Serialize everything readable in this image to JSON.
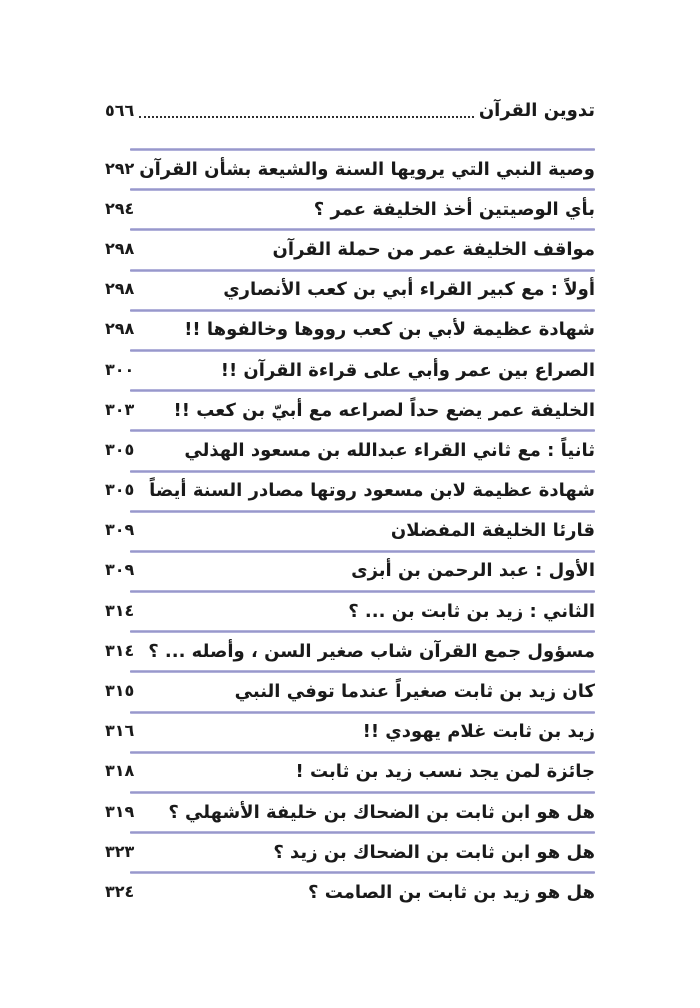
{
  "header": {
    "title": "تدوين القرآن",
    "page_number": "٥٦٦"
  },
  "toc": {
    "entries": [
      {
        "title": "وصية النبي التي يرويها السنة والشيعة بشأن القرآن",
        "page": "٢٩٢"
      },
      {
        "title": "بأي الوصيتين أخذ الخليفة عمر ؟",
        "page": "٢٩٤"
      },
      {
        "title": "مواقف الخليفة عمر من حملة القرآن",
        "page": "٢٩٨"
      },
      {
        "title": "أولاً : مع كبير القراء أبي بن كعب الأنصاري",
        "page": "٢٩٨"
      },
      {
        "title": "شهادة عظيمة لأبي بن كعب رووها وخالفوها !!",
        "page": "٢٩٨"
      },
      {
        "title": "الصراع بين عمر وأبي على قراءة القرآن !!",
        "page": "٣٠٠"
      },
      {
        "title": "الخليفة عمر يضع حداً لصراعه مع أبيّ بن كعب !!",
        "page": "٣٠٣"
      },
      {
        "title": "ثانياً : مع ثاني القراء عبدالله بن مسعود الهذلي",
        "page": "٣٠٥"
      },
      {
        "title": "شهادة عظيمة لابن مسعود روتها مصادر السنة أيضاً",
        "page": "٣٠٥"
      },
      {
        "title": "قارئا الخليفة المفضلان",
        "page": "٣٠٩"
      },
      {
        "title": "الأول : عبد الرحمن بن أبزى",
        "page": "٣٠٩"
      },
      {
        "title": "الثاني : زيد بن ثابت بن ... ؟",
        "page": "٣١٤"
      },
      {
        "title": "مسؤول جمع القرآن شاب صغير السن ، وأصله ... ؟",
        "page": "٣١٤"
      },
      {
        "title": "كان زيد بن ثابت صغيراً عندما توفي النبي",
        "page": "٣١٥"
      },
      {
        "title": "زيد بن ثابت غلام يهودي !!",
        "page": "٣١٦"
      },
      {
        "title": "جائزة لمن يجد نسب زيد بن ثابت !",
        "page": "٣١٨"
      },
      {
        "title": "هل هو ابن ثابت بن الضحاك بن خليفة الأشهلي ؟",
        "page": "٣١٩"
      },
      {
        "title": "هل هو ابن ثابت بن الضحاك بن زيد ؟",
        "page": "٣٢٣"
      },
      {
        "title": "هل هو زيد بن ثابت بن الصامت ؟",
        "page": "٣٢٤"
      }
    ]
  },
  "colors": {
    "separator": "#8f8fc6",
    "separator_edge": "#c2c2e4",
    "text": "#1a1a1a"
  }
}
